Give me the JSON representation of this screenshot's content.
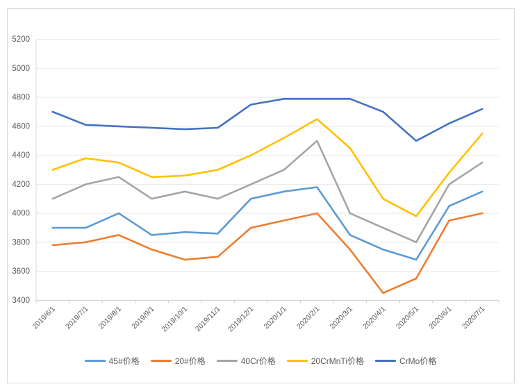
{
  "chart_data": {
    "type": "line",
    "title": "",
    "categories": [
      "2019/6/1",
      "2019/7/1",
      "2019/8/1",
      "2019/9/1",
      "2019/10/1",
      "2019/11/1",
      "2019/12/1",
      "2020/1/1",
      "2020/2/1",
      "2020/3/1",
      "2020/4/1",
      "2020/5/1",
      "2020/6/1",
      "2020/7/1"
    ],
    "series": [
      {
        "name": "45#价格",
        "color": "#5B9BD5",
        "values": [
          3900,
          3900,
          4000,
          3850,
          3870,
          3860,
          4100,
          4150,
          4180,
          3850,
          3750,
          3680,
          4050,
          4150
        ]
      },
      {
        "name": "20#价格",
        "color": "#ED7D31",
        "values": [
          3780,
          3800,
          3850,
          3750,
          3680,
          3700,
          3900,
          3950,
          4000,
          3750,
          3450,
          3550,
          3950,
          4000
        ]
      },
      {
        "name": "40Cr价格",
        "color": "#A5A5A5",
        "values": [
          4100,
          4200,
          4250,
          4100,
          4150,
          4100,
          4200,
          4300,
          4500,
          4000,
          3900,
          3800,
          4200,
          4350
        ]
      },
      {
        "name": "20CrMnTi价格",
        "color": "#FFC000",
        "values": [
          4300,
          4380,
          4350,
          4250,
          4260,
          4300,
          4400,
          4520,
          4650,
          4450,
          4100,
          3980,
          4280,
          4550
        ]
      },
      {
        "name": "CrMo价格",
        "color": "#4472C4",
        "values": [
          4700,
          4610,
          4600,
          4590,
          4580,
          4590,
          4750,
          4790,
          4790,
          4790,
          4700,
          4500,
          4620,
          4720
        ]
      }
    ],
    "y_axis": {
      "min": 3400,
      "max": 5200,
      "step": 200
    },
    "x_axis": {
      "label_rotation_deg": -45
    },
    "legend_position": "bottom",
    "grid": true,
    "grid_color": "#e8e8e8",
    "axis_line_color": "#c9c9c9",
    "axis_text_color": "#595959"
  }
}
